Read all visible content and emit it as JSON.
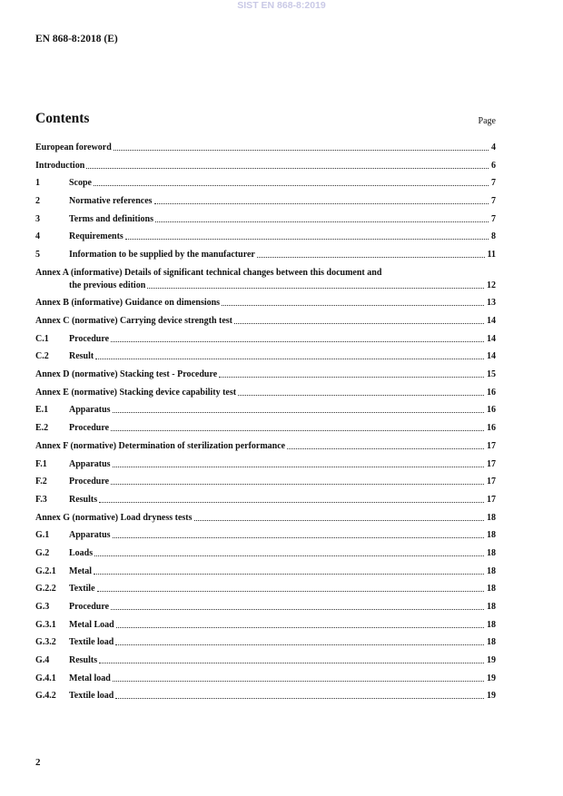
{
  "watermark": "SIST EN 868-8:2019",
  "header": "EN 868-8:2018 (E)",
  "contents_title": "Contents",
  "page_label": "Page",
  "entries": [
    {
      "num": "",
      "title": "European foreword",
      "page": "4"
    },
    {
      "num": "",
      "title": "Introduction",
      "page": "6"
    },
    {
      "num": "1",
      "title": "Scope",
      "page": "7"
    },
    {
      "num": "2",
      "title": "Normative references",
      "page": "7"
    },
    {
      "num": "3",
      "title": "Terms and definitions",
      "page": "7"
    },
    {
      "num": "4",
      "title": "Requirements",
      "page": "8"
    },
    {
      "num": "5",
      "title": "Information to be supplied by the manufacturer",
      "page": "11"
    },
    {
      "num": "",
      "title": "Annex A (informative)  Details of significant technical changes between this document and",
      "title2": "the previous edition",
      "page": "12"
    },
    {
      "num": "",
      "title": "Annex B (informative)  Guidance on dimensions",
      "page": "13"
    },
    {
      "num": "",
      "title": "Annex C (normative)  Carrying device strength test",
      "page": "14"
    },
    {
      "num": "C.1",
      "title": "Procedure",
      "page": "14"
    },
    {
      "num": "C.2",
      "title": "Result",
      "page": "14"
    },
    {
      "num": "",
      "title": "Annex D (normative)  Stacking test - Procedure",
      "page": "15"
    },
    {
      "num": "",
      "title": "Annex E (normative)  Stacking device capability test",
      "page": "16"
    },
    {
      "num": "E.1",
      "title": "Apparatus",
      "page": "16"
    },
    {
      "num": "E.2",
      "title": "Procedure",
      "page": "16"
    },
    {
      "num": "",
      "title": "Annex F (normative)  Determination of sterilization performance",
      "page": "17"
    },
    {
      "num": "F.1",
      "title": "Apparatus",
      "page": "17"
    },
    {
      "num": "F.2",
      "title": "Procedure",
      "page": "17"
    },
    {
      "num": "F.3",
      "title": "Results",
      "page": "17"
    },
    {
      "num": "",
      "title": "Annex G (normative)  Load dryness tests",
      "page": "18"
    },
    {
      "num": "G.1",
      "title": "Apparatus",
      "page": "18"
    },
    {
      "num": "G.2",
      "title": "Loads",
      "page": "18"
    },
    {
      "num": "G.2.1",
      "title": "Metal",
      "page": "18"
    },
    {
      "num": "G.2.2",
      "title": "Textile",
      "page": "18"
    },
    {
      "num": "G.3",
      "title": "Procedure",
      "page": "18"
    },
    {
      "num": "G.3.1",
      "title": "Metal Load",
      "page": "18"
    },
    {
      "num": "G.3.2",
      "title": "Textile load",
      "page": "18"
    },
    {
      "num": "G.4",
      "title": "Results",
      "page": "19"
    },
    {
      "num": "G.4.1",
      "title": "Metal load",
      "page": "19"
    },
    {
      "num": "G.4.2",
      "title": "Textile load",
      "page": "19"
    }
  ],
  "page_number": "2"
}
